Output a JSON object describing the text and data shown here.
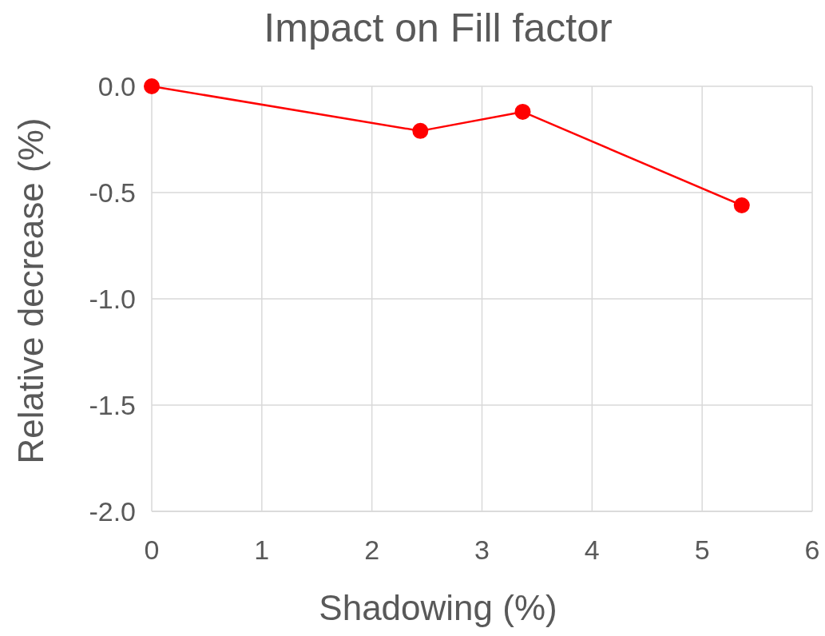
{
  "chart_data": {
    "type": "line",
    "title": "Impact on Fill factor",
    "xlabel": "Shadowing (%)",
    "ylabel": "Relative decrease (%)",
    "x": [
      0,
      2.44,
      3.37,
      5.36
    ],
    "series": [
      {
        "color": "#ff0000",
        "values": [
          0,
          -0.21,
          -0.12,
          -0.56
        ]
      }
    ],
    "xlim": [
      0,
      6
    ],
    "xticks": [
      0,
      1,
      2,
      3,
      4,
      5,
      6
    ],
    "ylim": [
      -2,
      0
    ],
    "yticks": [
      {
        "value": -2,
        "label": "-2.0"
      },
      {
        "value": -1.5,
        "label": "-1.5"
      },
      {
        "value": -1,
        "label": "-1.0"
      },
      {
        "value": -0.5,
        "label": "-0.5"
      },
      {
        "value": 0,
        "label": "0.0"
      }
    ],
    "grid": true,
    "marker": "circle",
    "line_style": "solid"
  }
}
